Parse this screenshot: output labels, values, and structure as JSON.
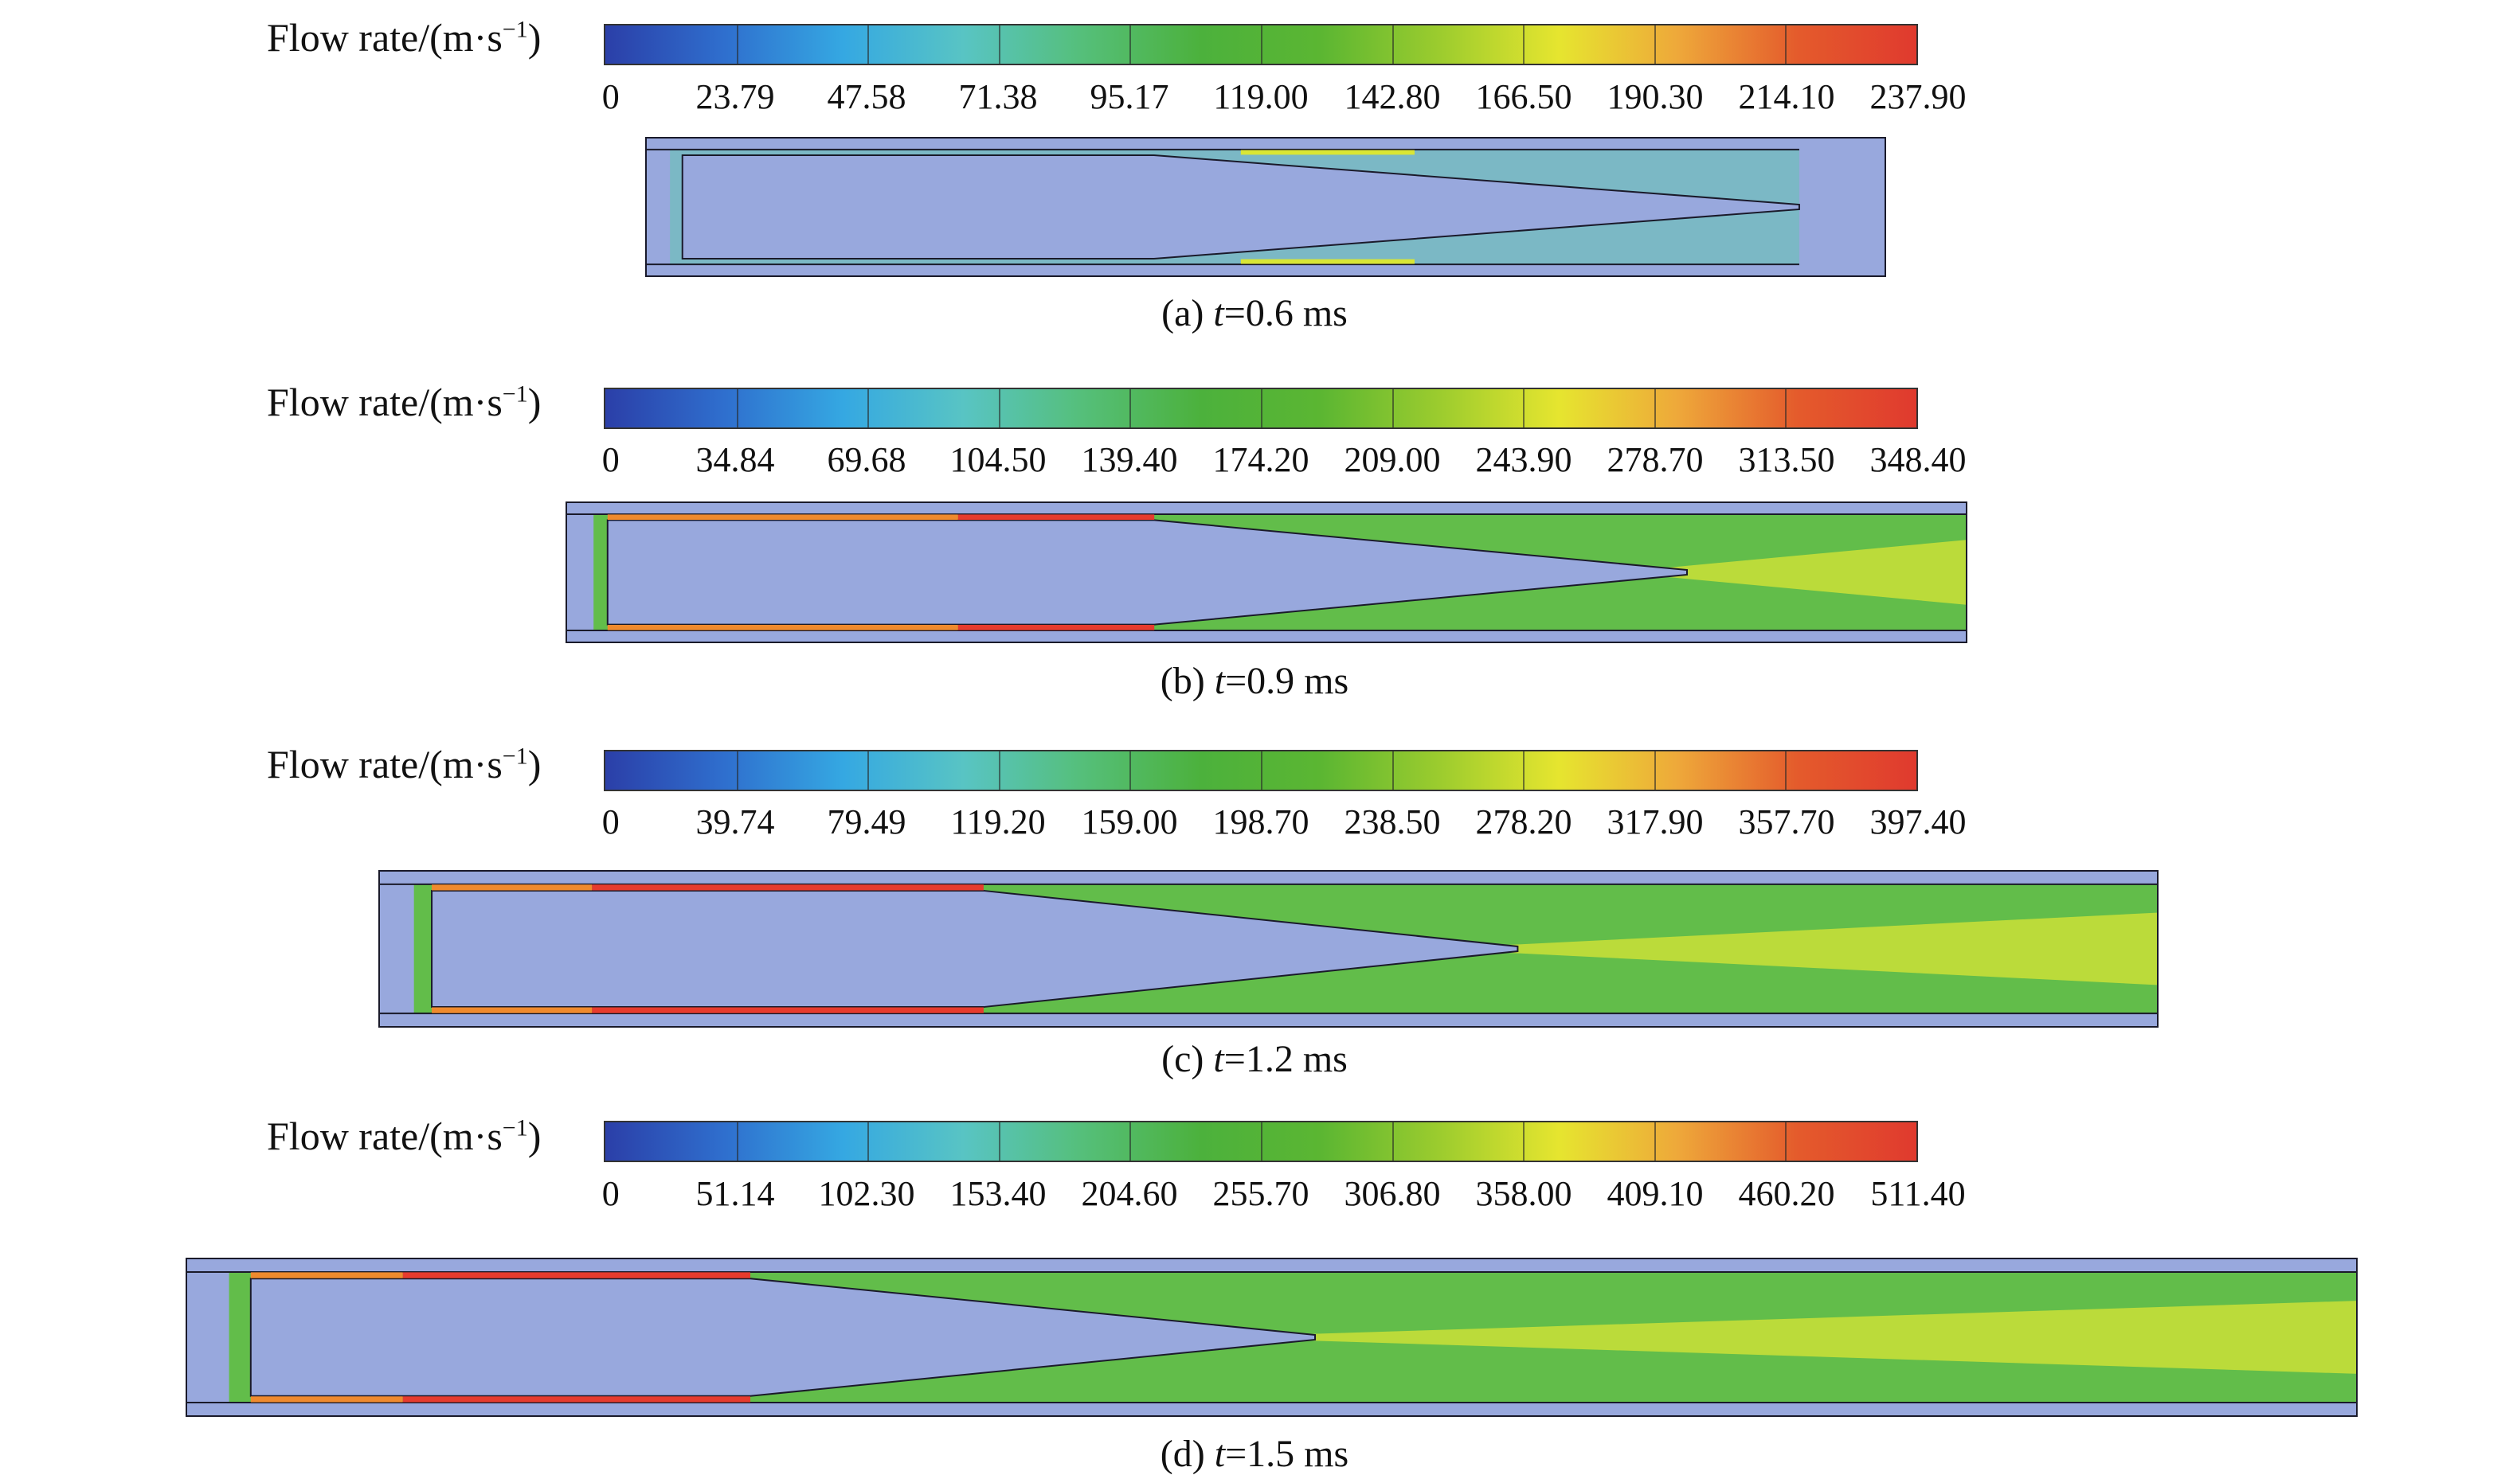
{
  "colorbar": {
    "stops": [
      "#2b3fa8",
      "#2f6fce",
      "#35a8e2",
      "#58c4c4",
      "#55bf7a",
      "#4cb13c",
      "#5bb632",
      "#9ccc2e",
      "#e6e52f",
      "#eea83a",
      "#e45b2c",
      "#e03a2e"
    ]
  },
  "colors": {
    "body": "#98a8dd",
    "outline": "#1a1a2a",
    "green": "#5cbf3a",
    "yellow": "#d9e635",
    "orange": "#ef8a2e",
    "red": "#e63b2e",
    "teal": "#64c4b0"
  },
  "panels": [
    {
      "legend_title": "Flow rate/(m·s",
      "legend_unit_sup": "−1",
      "legend_title_close": ")",
      "ticks": [
        "0",
        "23.79",
        "47.58",
        "71.38",
        "95.17",
        "119.00",
        "142.80",
        "166.50",
        "190.30",
        "214.10",
        "237.90"
      ],
      "caption_label": "(a) ",
      "caption_var": "t",
      "caption_value": "=0.6 ms",
      "flow_intensity": "low"
    },
    {
      "legend_title": "Flow rate/(m·s",
      "legend_unit_sup": "−1",
      "legend_title_close": ")",
      "ticks": [
        "0",
        "34.84",
        "69.68",
        "104.50",
        "139.40",
        "174.20",
        "209.00",
        "243.90",
        "278.70",
        "313.50",
        "348.40"
      ],
      "caption_label": "(b) ",
      "caption_var": "t",
      "caption_value": "=0.9 ms",
      "flow_intensity": "medium"
    },
    {
      "legend_title": "Flow rate/(m·s",
      "legend_unit_sup": "−1",
      "legend_title_close": ")",
      "ticks": [
        "0",
        "39.74",
        "79.49",
        "119.20",
        "159.00",
        "198.70",
        "238.50",
        "278.20",
        "317.90",
        "357.70",
        "397.40"
      ],
      "caption_label": "(c) ",
      "caption_var": "t",
      "caption_value": "=1.2 ms",
      "flow_intensity": "high"
    },
    {
      "legend_title": "Flow rate/(m·s",
      "legend_unit_sup": "−1",
      "legend_title_close": ")",
      "ticks": [
        "0",
        "51.14",
        "102.30",
        "153.40",
        "204.60",
        "255.70",
        "306.80",
        "358.00",
        "409.10",
        "460.20",
        "511.40"
      ],
      "caption_label": "(d) ",
      "caption_var": "t",
      "caption_value": "=1.5 ms",
      "flow_intensity": "very-high"
    }
  ]
}
